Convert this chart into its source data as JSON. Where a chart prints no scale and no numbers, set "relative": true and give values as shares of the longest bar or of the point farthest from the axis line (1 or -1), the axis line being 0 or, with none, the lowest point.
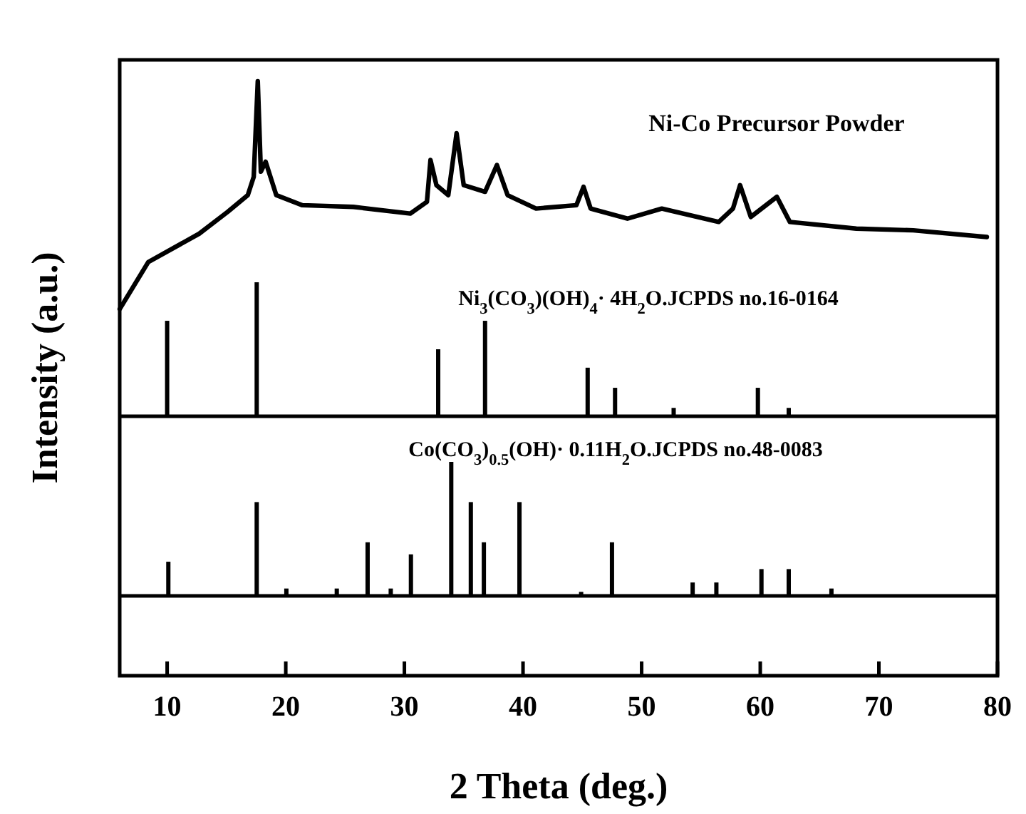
{
  "chart_data": [
    {
      "type": "line",
      "ylabel": "Intensity (a.u.)",
      "relative": true,
      "xlim": [
        6,
        80
      ],
      "series": [
        {
          "name": "Ni-Co Precursor Powder",
          "color": "#000000",
          "x": [
            6.0,
            8.4,
            12.7,
            15.1,
            16.8,
            17.3,
            17.64,
            17.9,
            18.3,
            19.2,
            21.4,
            25.7,
            30.5,
            31.9,
            32.2,
            32.7,
            33.7,
            34.4,
            35.0,
            36.8,
            37.8,
            38.7,
            41.1,
            44.5,
            45.1,
            45.7,
            48.8,
            51.7,
            56.5,
            57.7,
            58.3,
            59.2,
            61.4,
            62.5,
            68.1,
            72.9,
            79.1
          ],
          "values": [
            0.32,
            0.46,
            0.545,
            0.61,
            0.66,
            0.715,
            1.0,
            0.73,
            0.76,
            0.66,
            0.63,
            0.625,
            0.605,
            0.64,
            0.765,
            0.69,
            0.66,
            0.845,
            0.69,
            0.67,
            0.75,
            0.66,
            0.62,
            0.63,
            0.685,
            0.62,
            0.59,
            0.62,
            0.58,
            0.62,
            0.69,
            0.595,
            0.655,
            0.58,
            0.56,
            0.555,
            0.535
          ]
        },
        {
          "name": "Ni$_{3}$(CO$_{3}$)(OH)$_{4}$· 4H$_{2}$O.JCPDS no.16-0164",
          "type": "bar",
          "color": "#000000",
          "x": [
            10.0,
            17.55,
            32.85,
            36.8,
            45.45,
            47.76,
            52.7,
            59.8,
            62.4
          ],
          "values": [
            0.285,
            0.4,
            0.2,
            0.285,
            0.145,
            0.085,
            0.025,
            0.085,
            0.025
          ]
        }
      ]
    },
    {
      "type": "bar",
      "xlabel": "2 Theta (deg.)",
      "relative": true,
      "xlim": [
        6,
        80
      ],
      "xticks": [
        10,
        20,
        30,
        40,
        50,
        60,
        70,
        80
      ],
      "series": [
        {
          "name": "Co(CO$_{3}$)$_{0.5}$(OH)· 0.11H$_{2}$O.JCPDS no.48-0083",
          "color": "#000000",
          "x": [
            10.1,
            17.55,
            20.05,
            24.3,
            26.9,
            28.85,
            30.55,
            33.95,
            35.6,
            36.7,
            39.7,
            44.9,
            47.5,
            54.3,
            56.3,
            60.1,
            62.4,
            66.0
          ],
          "values": [
            0.255,
            0.7,
            0.055,
            0.055,
            0.4,
            0.055,
            0.31,
            1.0,
            0.7,
            0.4,
            0.7,
            0.03,
            0.4,
            0.1,
            0.1,
            0.2,
            0.2,
            0.055
          ]
        }
      ]
    }
  ]
}
